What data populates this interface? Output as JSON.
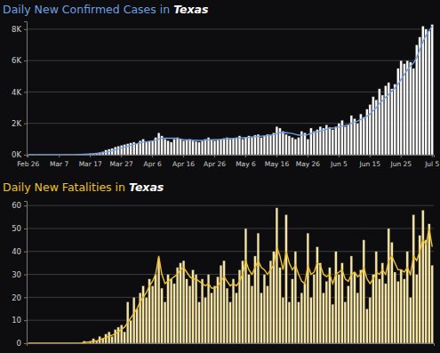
{
  "chart_data": [
    {
      "type": "bar",
      "title": "Daily New Confirmed Cases in Texas",
      "grid": true,
      "categories": [
        "Feb 26",
        null,
        null,
        null,
        null,
        null,
        null,
        null,
        null,
        null,
        "Mar 7",
        null,
        null,
        null,
        null,
        null,
        null,
        null,
        null,
        null,
        "Mar 17",
        null,
        null,
        null,
        null,
        null,
        null,
        null,
        null,
        null,
        "Mar 27",
        null,
        null,
        null,
        null,
        null,
        null,
        null,
        null,
        null,
        "Apr 6",
        null,
        null,
        null,
        null,
        null,
        null,
        null,
        null,
        null,
        "Apr 16",
        null,
        null,
        null,
        null,
        null,
        null,
        null,
        null,
        null,
        "Apr 26",
        null,
        null,
        null,
        null,
        null,
        null,
        null,
        null,
        null,
        "May 6",
        null,
        null,
        null,
        null,
        null,
        null,
        null,
        null,
        null,
        "May 16",
        null,
        null,
        null,
        null,
        null,
        null,
        null,
        null,
        null,
        "May 26",
        null,
        null,
        null,
        null,
        null,
        null,
        null,
        null,
        null,
        "Jun 5",
        null,
        null,
        null,
        null,
        null,
        null,
        null,
        null,
        null,
        "Jun 15",
        null,
        null,
        null,
        null,
        null,
        null,
        null,
        null,
        null,
        "Jun 25",
        null,
        null,
        null,
        null,
        null,
        null,
        null,
        null,
        null,
        "Jul 5"
      ],
      "ylim": [
        0,
        8500
      ],
      "yticks": [
        {
          "value": 0,
          "label": "0K"
        },
        {
          "value": 2000,
          "label": "2K"
        },
        {
          "value": 4000,
          "label": "4K"
        },
        {
          "value": 6000,
          "label": "6K"
        },
        {
          "value": 8000,
          "label": "8K"
        }
      ],
      "series": [
        {
          "type": "bar",
          "color": "#ffffff",
          "values": [
            0,
            0,
            0,
            0,
            0,
            0,
            0,
            0,
            1,
            2,
            3,
            5,
            5,
            8,
            10,
            15,
            20,
            30,
            40,
            60,
            80,
            90,
            120,
            150,
            200,
            300,
            350,
            400,
            500,
            550,
            600,
            650,
            700,
            750,
            800,
            700,
            900,
            1000,
            800,
            850,
            900,
            1100,
            1400,
            1200,
            1000,
            900,
            800,
            1000,
            1100,
            1000,
            900,
            950,
            1000,
            900,
            850,
            800,
            900,
            1000,
            1100,
            950,
            900,
            950,
            1000,
            1050,
            1100,
            1000,
            1050,
            1100,
            1200,
            1000,
            1100,
            1200,
            1150,
            1250,
            1300,
            1100,
            1200,
            1300,
            1250,
            1400,
            1800,
            1700,
            1500,
            1300,
            1200,
            1100,
            1000,
            1100,
            1500,
            1400,
            1000,
            1700,
            1500,
            1600,
            1800,
            1700,
            1900,
            1750,
            1600,
            1800,
            2000,
            2200,
            1800,
            1900,
            2500,
            2300,
            2000,
            2600,
            2400,
            2900,
            3200,
            3700,
            3500,
            4200,
            3800,
            4400,
            4600,
            4200,
            4500,
            5500,
            6000,
            5800,
            6000,
            5900,
            5500,
            7000,
            7500,
            8200,
            8000,
            7900,
            8300
          ]
        },
        {
          "type": "line",
          "color": "#6f9fe0",
          "values": [
            0,
            0,
            0,
            0,
            0,
            0,
            0,
            0,
            0,
            0,
            1,
            2,
            3,
            4,
            6,
            9,
            12,
            17,
            25,
            35,
            50,
            60,
            80,
            100,
            125,
            160,
            200,
            250,
            310,
            360,
            420,
            480,
            540,
            600,
            660,
            700,
            750,
            800,
            830,
            860,
            880,
            930,
            1000,
            1050,
            1050,
            1050,
            1050,
            1050,
            1040,
            1000,
            960,
            950,
            940,
            930,
            920,
            910,
            910,
            920,
            940,
            950,
            960,
            970,
            980,
            1000,
            1020,
            1030,
            1040,
            1050,
            1070,
            1080,
            1090,
            1100,
            1120,
            1140,
            1160,
            1180,
            1200,
            1220,
            1250,
            1280,
            1350,
            1400,
            1420,
            1400,
            1380,
            1350,
            1300,
            1250,
            1250,
            1260,
            1280,
            1350,
            1400,
            1450,
            1500,
            1560,
            1620,
            1680,
            1700,
            1720,
            1760,
            1820,
            1860,
            1900,
            2000,
            2080,
            2150,
            2250,
            2330,
            2450,
            2600,
            2800,
            3000,
            3250,
            3450,
            3650,
            3850,
            4050,
            4250,
            4500,
            4800,
            5100,
            5400,
            5650,
            5850,
            6200,
            6700,
            7200,
            7600,
            7900,
            8200
          ]
        }
      ]
    },
    {
      "type": "bar",
      "title": "Daily New Fatalities in Texas",
      "grid": true,
      "tick_labels": "y",
      "categories": [
        null,
        null,
        null,
        null,
        null,
        null,
        null,
        null,
        null,
        null,
        null,
        null,
        null,
        null,
        null,
        null,
        null,
        null,
        null,
        null,
        null,
        null,
        null,
        null,
        null,
        null,
        null,
        null,
        null,
        null,
        null,
        null,
        null,
        null,
        null,
        null,
        null,
        null,
        null,
        null,
        null,
        null,
        null,
        null,
        null,
        null,
        null,
        null,
        null,
        null,
        null,
        null,
        null,
        null,
        null,
        null,
        null,
        null,
        null,
        null,
        null,
        null,
        null,
        null,
        null,
        null,
        null,
        null,
        null,
        null,
        null,
        null,
        null,
        null,
        null,
        null,
        null,
        null,
        null,
        null,
        null,
        null,
        null,
        null,
        null,
        null,
        null,
        null,
        null,
        null,
        null,
        null,
        null,
        null,
        null,
        null,
        null,
        null,
        null,
        null,
        null,
        null,
        null,
        null,
        null,
        null,
        null,
        null,
        null,
        null,
        null,
        null,
        null,
        null,
        null,
        null,
        null,
        null,
        null,
        null,
        null,
        null,
        null,
        null,
        null,
        null,
        null,
        null,
        null,
        null,
        null
      ],
      "ylim": [
        0,
        62
      ],
      "yticks": [
        0,
        10,
        20,
        30,
        40,
        50,
        60
      ],
      "series": [
        {
          "type": "bar",
          "color": "#f7e6a6",
          "values": [
            0,
            0,
            0,
            0,
            0,
            0,
            0,
            0,
            0,
            0,
            0,
            0,
            0,
            0,
            0,
            0,
            0,
            0,
            1,
            0,
            1,
            2,
            1,
            3,
            2,
            4,
            5,
            3,
            6,
            7,
            8,
            5,
            18,
            10,
            20,
            15,
            22,
            25,
            20,
            28,
            25,
            30,
            37,
            24,
            18,
            30,
            28,
            26,
            33,
            35,
            36,
            28,
            25,
            32,
            30,
            18,
            28,
            20,
            30,
            22,
            25,
            29,
            34,
            36,
            24,
            18,
            28,
            22,
            32,
            36,
            50,
            30,
            25,
            38,
            48,
            22,
            30,
            25,
            36,
            40,
            59,
            33,
            20,
            56,
            18,
            28,
            40,
            18,
            22,
            26,
            48,
            20,
            30,
            42,
            35,
            22,
            27,
            33,
            17,
            40,
            30,
            35,
            18,
            25,
            38,
            31,
            22,
            32,
            45,
            15,
            20,
            30,
            40,
            28,
            35,
            26,
            50,
            44,
            31,
            27,
            32,
            28,
            40,
            20,
            56,
            30,
            47,
            58,
            45,
            52,
            34
          ]
        },
        {
          "type": "line",
          "color": "#f0c22a",
          "values": [
            0,
            0,
            0,
            0,
            0,
            0,
            0,
            0,
            0,
            0,
            0,
            0,
            0,
            0,
            0,
            0,
            0,
            0,
            0.3,
            0.5,
            0.5,
            1,
            1,
            1.5,
            2,
            2.5,
            3,
            3.5,
            4,
            5,
            6,
            7,
            9,
            11,
            13,
            15,
            18,
            20,
            22,
            25,
            27,
            30,
            38,
            30,
            26,
            27,
            28,
            29,
            30,
            32,
            33,
            31,
            29,
            28,
            28,
            27,
            26,
            25,
            26,
            24,
            24,
            25,
            27,
            29,
            27,
            25,
            26,
            25,
            27,
            30,
            36,
            32,
            30,
            33,
            36,
            33,
            32,
            30,
            32,
            34,
            42,
            38,
            32,
            40,
            35,
            32,
            34,
            30,
            27,
            26,
            34,
            30,
            31,
            35,
            34,
            30,
            29,
            30,
            26,
            30,
            31,
            32,
            28,
            27,
            30,
            31,
            29,
            30,
            33,
            28,
            26,
            28,
            31,
            30,
            32,
            30,
            36,
            38,
            35,
            32,
            32,
            31,
            33,
            30,
            38,
            36,
            40,
            45,
            43,
            50,
            42
          ]
        }
      ]
    }
  ]
}
